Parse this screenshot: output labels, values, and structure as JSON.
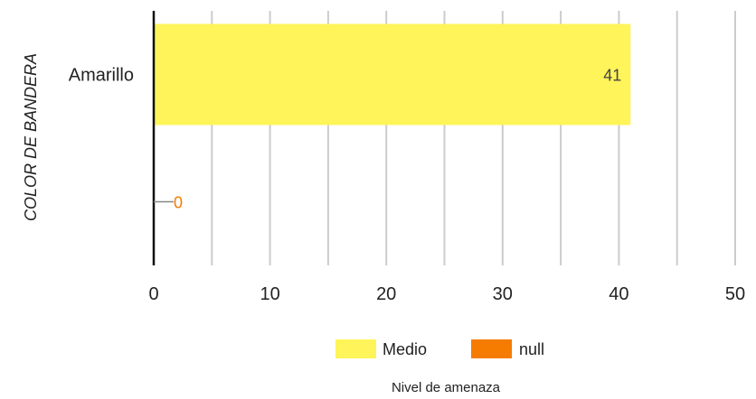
{
  "chart_data": {
    "type": "bar",
    "orientation": "horizontal",
    "stacked": true,
    "categories": [
      "Amarillo",
      ""
    ],
    "series": [
      {
        "name": "Medio",
        "values": [
          41,
          null
        ],
        "color": "#FFF459"
      },
      {
        "name": "null",
        "values": [
          null,
          0
        ],
        "color": "#F57C00"
      }
    ],
    "data_labels": [
      "41",
      "0"
    ],
    "ylabel": "COLOR DE BANDERA",
    "legend_title": "Nivel de amenaza",
    "xlim": [
      0,
      50
    ],
    "xticks": [
      0,
      10,
      20,
      30,
      40,
      50
    ],
    "grid": true,
    "legend_position": "bottom"
  }
}
